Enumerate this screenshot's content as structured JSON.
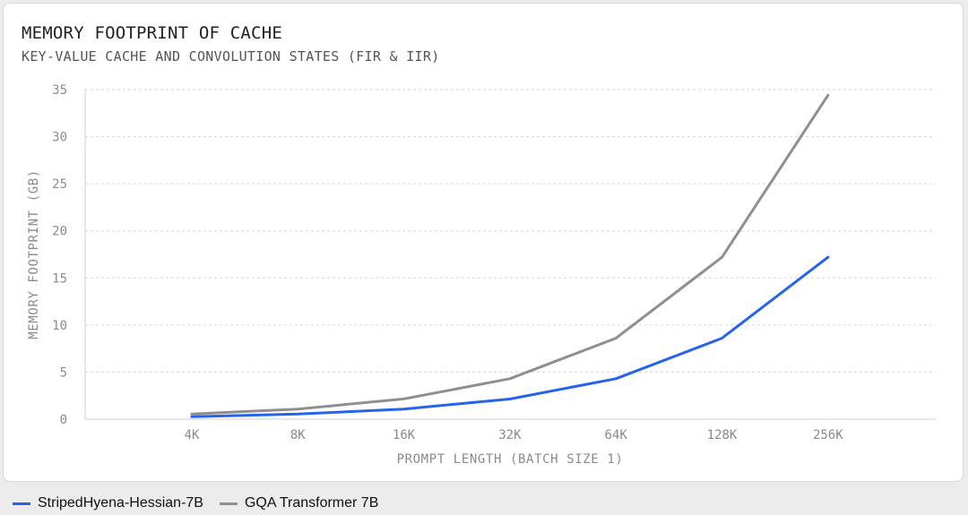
{
  "title": "MEMORY FOOTPRINT OF CACHE",
  "subtitle": "KEY-VALUE CACHE AND CONVOLUTION STATES (FIR & IIR)",
  "chart_data": {
    "type": "line",
    "title": "MEMORY FOOTPRINT OF CACHE",
    "subtitle": "KEY-VALUE CACHE AND CONVOLUTION STATES (FIR & IIR)",
    "xlabel": "PROMPT LENGTH (BATCH SIZE 1)",
    "ylabel": "MEMORY FOOTPRINT (GB)",
    "categories": [
      "4K",
      "8K",
      "16K",
      "32K",
      "64K",
      "128K",
      "256K"
    ],
    "yticks": [
      "0",
      "5",
      "10",
      "15",
      "20",
      "25",
      "30",
      "35"
    ],
    "ylim": [
      0,
      35
    ],
    "grid": true,
    "legend_position": "bottom-left",
    "series": [
      {
        "name": "StripedHyena-Hessian-7B",
        "color": "#2563eb",
        "values": [
          0.27,
          0.54,
          1.07,
          2.14,
          4.3,
          8.6,
          17.2
        ]
      },
      {
        "name": "GQA Transformer 7B",
        "color": "#8f8f8f",
        "values": [
          0.54,
          1.07,
          2.15,
          4.3,
          8.6,
          17.2,
          34.4
        ]
      }
    ]
  }
}
